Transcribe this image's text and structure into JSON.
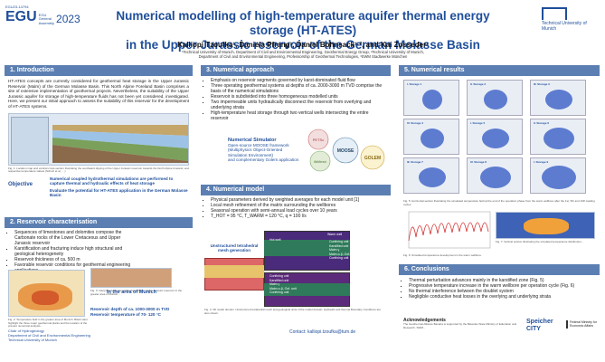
{
  "header": {
    "egu_id": "EGU23-14794",
    "egu_name": "EGU General Assembly",
    "egu_year": "2023",
    "title_line1": "Numerical modelling of high-temperature aquifer thermal energy storage (HT-ATES)",
    "title_line2": "in the Upper Jurassic reservoir of the German Molasse Basin",
    "authors": "Kalliopi Tzoufka¹, Daniela Pfrang¹, Daniel Bohnsack¹·², and Kai Zosseder¹",
    "affil1": "¹Technical University of Munich, Department of Civil and Environmental Engineering, Geothermal Energy Group, ²Technical University of Munich,",
    "affil2": "Department of Civil and Environmental Engineering, Professorship of Geothermal Technologies, ³SWM Stadtwerke München",
    "tum_text": "Technical University of Munich"
  },
  "intro": {
    "heading": "1. Introduction",
    "body": "HT-ATES concepts are currently considered for geothermal heat storage in the Upper Jurassic Reservoir (Malm) of the German Molasse Basin. This North Alpine Foreland Basin comprises a site of extensive implementation of geothermal projects. Nevertheless, the suitability of the Upper Jurassic aquifer for storage of high-temperature fluids has not been yet considered, investigated. Here, we present our initial approach to assess the suitability of this reservoir for the development of HT-ATES systems.",
    "fig_caption": "Fig. 1: Location map and vertical cross-section illustrating the southward dipping of the Upper Jurassic reservoir towards the North Alpine foreland, and respective temperature values (Schulz et al., ...)",
    "objective_label": "Objective",
    "objective_1": "Numerical coupled hydrothermal simulations are performed to capture thermal and hydraulic effects of heat storage",
    "objective_2": "Evaluate the potential for HT-ATES application in the German Molasse Basin"
  },
  "reservoir": {
    "heading": "2. Reservoir characterisation",
    "bullets": [
      "Sequences of limestones and dolomites compose the Carbonate rocks of the Lower Cretaceous and Upper Jurassic reservoir",
      "Karstification and fracturing induce high structural and geological heterogeneity",
      "Reservoir thickness of ca. 500 m",
      "Favorable reservoir conditions for geothermal engineering applications"
    ],
    "fig2_caption": "Fig. 2: Temperature field in the greater area of Munich. Black stars highlight the three major geothermal plants and the location of the present numerical analysis...",
    "fig3_caption": "Fig. 3: Interpreted seismic profile through the Upper Jurassic reservoir in the greater area of Munich...",
    "munich_label": "In the area of Munich",
    "munich_1": "Reservoir depth of ca. 1000-3000 m TVD",
    "munich_2": "Reservoir temperature of 70- 120 °C",
    "chair": "Chair of Hydrogeology",
    "chair2": "Department of Civil and Environmental Engineering",
    "chair3": "Technical University of Munich"
  },
  "approach": {
    "heading": "3. Numerical approach",
    "bullets": [
      "Emphasis on reservoir segments governed by karst-dominated fluid flow",
      "Three operating geothermal systems at depths of ca. 2000-3000 m TVD comprise the basis of the numerical simulations",
      "Reservoir is subdivided into three homogeneous modelled units",
      "Two impermeable units hydraulically disconnect the reservoir from overlying and underlying strata",
      "High-temperature heat storage through two vertical wells intersecting the entire reservoir"
    ],
    "sim_title": "Numerical Simulator",
    "sim_line1": "Open-source MOOSE framework",
    "sim_line2": "(Multiphysics Object-Oriented Simulation Environment)",
    "sim_line3": "and complementary Golem application",
    "bubbles": [
      "PETSc",
      "libMesh",
      "MOOSE",
      "GOLEM"
    ]
  },
  "model": {
    "heading": "4. Numerical model",
    "bullets": [
      "Physical parameters derived by weighted averages for each model unit [1]",
      "Local mesh refinement of the matrix surrounding the wellbores",
      "Seasonal operation with semi-annual load cycles over 10 years",
      "T_HOT = 95 °C, T_WARM = 120 °C, q = 100 l/s"
    ],
    "mesh_label": "Unstructured tetrahedral mesh generation",
    "hot_well": "Hot well",
    "warm_well": "Warm well",
    "layers": [
      "Confining unit",
      "Karstified unit",
      "Malm γ",
      "Malm α-β, Oxf. unit",
      "Confining unit"
    ],
    "fig_caption": "Fig. 4: 3D model domain. Unstructured tetrahedral mesh and geological units of the model domain. Hydraulic and thermal Boundary Conditions are also shown."
  },
  "results": {
    "heading": "5. Numerical results",
    "cells": [
      "I. Storage 1",
      "II. Storage 2",
      "III. Storage 3",
      "IV. Storage 4",
      "I. Storage 5",
      "II. Storage 6",
      "III. Storage 7",
      "IV. Storage 8",
      "I. Storage 9",
      "II. Storage 10",
      "III. Storage 11",
      "IV. Storage 12"
    ],
    "fig5_caption": "Fig. 5: Horizontal section illustrating the simulated temperature field at the end of the operation phase from the warm wellbore after the 1st, 5th and 10th loading cycles.",
    "fig6_caption": "Fig. 6: Simulated temperature development in the warm wellbore.",
    "fig7_caption": "Fig. 7: Vertical section illustrating the simulated temperature distribution..."
  },
  "conclusions": {
    "heading": "6. Conclusions",
    "bullets": [
      "Thermal perturbation advances mainly in the karstified zone (Fig. 5)",
      "Progressive temperature increase in the warm wellbore per operation cycle (Fig. 6)",
      "No thermal interference between the doublet system",
      "Negligible conductive heat losses in the overlying and underlying strata"
    ],
    "ack_title": "Acknowledgements",
    "ack_text": "The Geothermal Alliance Bavaria is supported by the Bavarian State Ministry of Education and Research. SWM...",
    "contact": "Contact: kalliopi.tzoufka@tum.de",
    "logo1": "Speicher CITY",
    "logo2": "Federal Ministry for Economic Affairs"
  },
  "colors": {
    "accent": "#1f4e9a",
    "section_header": "#5b7fb2",
    "hot": "#d32f2f",
    "cold": "#3a5fc7"
  }
}
